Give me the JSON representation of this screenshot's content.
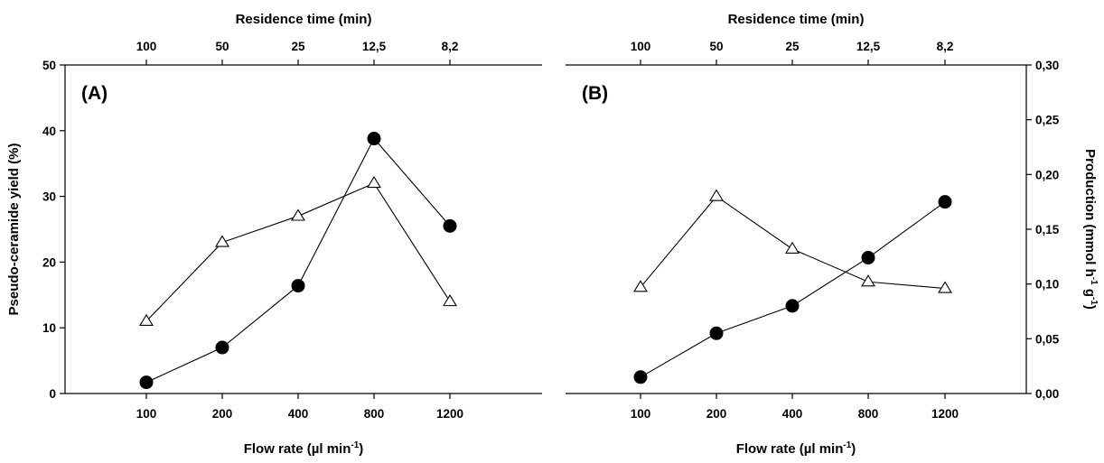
{
  "chart_data": [
    {
      "type": "line",
      "panel_label": "(A)",
      "x_categories": [
        "100",
        "200",
        "400",
        "800",
        "1200"
      ],
      "top_axis": {
        "title": "Residence time (min)",
        "tick_labels": [
          "100",
          "50",
          "25",
          "12,5",
          "8,2"
        ]
      },
      "xlabel": {
        "main": "Flow rate (µl min",
        "sup": "-1",
        "close": ")"
      },
      "ylabel": "Pseudo-ceramide yield (%)",
      "y_axis_side": "left",
      "ylim": [
        0,
        50
      ],
      "yticks": [
        0,
        10,
        20,
        30,
        40,
        50
      ],
      "ytick_labels": [
        "0",
        "10",
        "20",
        "30",
        "40",
        "50"
      ],
      "series": [
        {
          "marker": "filled-circle",
          "values": [
            1.7,
            7.0,
            16.4,
            38.8,
            25.5
          ]
        },
        {
          "marker": "open-triangle",
          "values": [
            11.0,
            23.0,
            27.0,
            32.0,
            14.0
          ]
        }
      ]
    },
    {
      "type": "line",
      "panel_label": "(B)",
      "x_categories": [
        "100",
        "200",
        "400",
        "800",
        "1200"
      ],
      "top_axis": {
        "title": "Residence time (min)",
        "tick_labels": [
          "100",
          "50",
          "25",
          "12,5",
          "8,2"
        ]
      },
      "xlabel": {
        "main": "Flow rate (µl min",
        "sup": "-1",
        "close": ")"
      },
      "ylabel": {
        "main": "Production (mmol h",
        "sup1": "-1",
        "mid": " g",
        "sup2": "-1",
        "close": ")"
      },
      "y_axis_side": "right",
      "ylim": [
        0,
        0.3
      ],
      "yticks": [
        0,
        0.05,
        0.1,
        0.15,
        0.2,
        0.25,
        0.3
      ],
      "ytick_labels": [
        "0,00",
        "0,05",
        "0,10",
        "0,15",
        "0,20",
        "0,25",
        "0,30"
      ],
      "series": [
        {
          "marker": "filled-circle",
          "values": [
            0.015,
            0.055,
            0.08,
            0.124,
            0.175
          ]
        },
        {
          "marker": "open-triangle",
          "values": [
            0.097,
            0.18,
            0.132,
            0.102,
            0.096
          ]
        }
      ]
    }
  ]
}
